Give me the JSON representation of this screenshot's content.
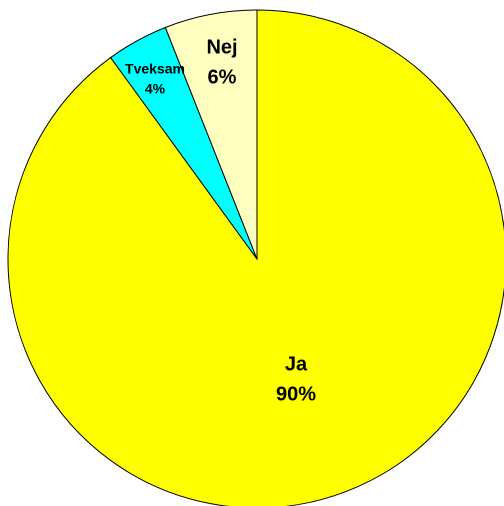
{
  "chart_data": {
    "type": "pie",
    "categories": [
      "Ja",
      "Tveksam",
      "Nej"
    ],
    "values": [
      90,
      4,
      6
    ],
    "value_labels": [
      "90%",
      "4%",
      "6%"
    ],
    "colors": [
      "#ffff00",
      "#00ffff",
      "#ffffc0"
    ]
  }
}
